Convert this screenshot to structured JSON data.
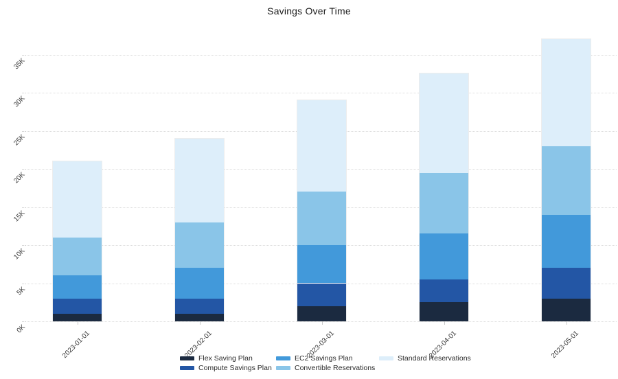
{
  "chart_data": {
    "type": "bar",
    "stacked": true,
    "title": "Savings Over Time",
    "categories": [
      "2023-01-01",
      "2023-02-01",
      "2023-03-01",
      "2023-04-01",
      "2023-05-01"
    ],
    "series": [
      {
        "name": "Flex Saving Plan",
        "color": "#1b2a40",
        "values": [
          1000,
          1000,
          2000,
          2500,
          3000
        ]
      },
      {
        "name": "Compute Savings Plan",
        "color": "#2356a5",
        "values": [
          2000,
          2000,
          3000,
          3000,
          4000
        ]
      },
      {
        "name": "EC2 Savings Plan",
        "color": "#4299da",
        "values": [
          3000,
          4000,
          5000,
          6000,
          7000
        ]
      },
      {
        "name": "Convertible Reservations",
        "color": "#8ac5e8",
        "values": [
          5000,
          6000,
          7000,
          8000,
          9000
        ]
      },
      {
        "name": "Standard Reservations",
        "color": "#ddeefa",
        "values": [
          10000,
          11000,
          12000,
          13000,
          14000
        ]
      }
    ],
    "totals": [
      21000,
      24000,
      29000,
      32500,
      37000
    ],
    "y_axis": {
      "tick_values": [
        0,
        5000,
        10000,
        15000,
        20000,
        25000,
        30000,
        35000
      ],
      "tick_labels": [
        "0K",
        "5K",
        "10K",
        "15K",
        "20K",
        "25K",
        "30K",
        "35K"
      ],
      "label_angle_deg": -45
    },
    "x_axis": {
      "label_angle_deg": -45
    },
    "grid": "horizontal-dotted",
    "legend_position": "bottom",
    "background_color": "#ffffff",
    "grid_color": "#dcdcdc",
    "text_color": "#333333"
  }
}
